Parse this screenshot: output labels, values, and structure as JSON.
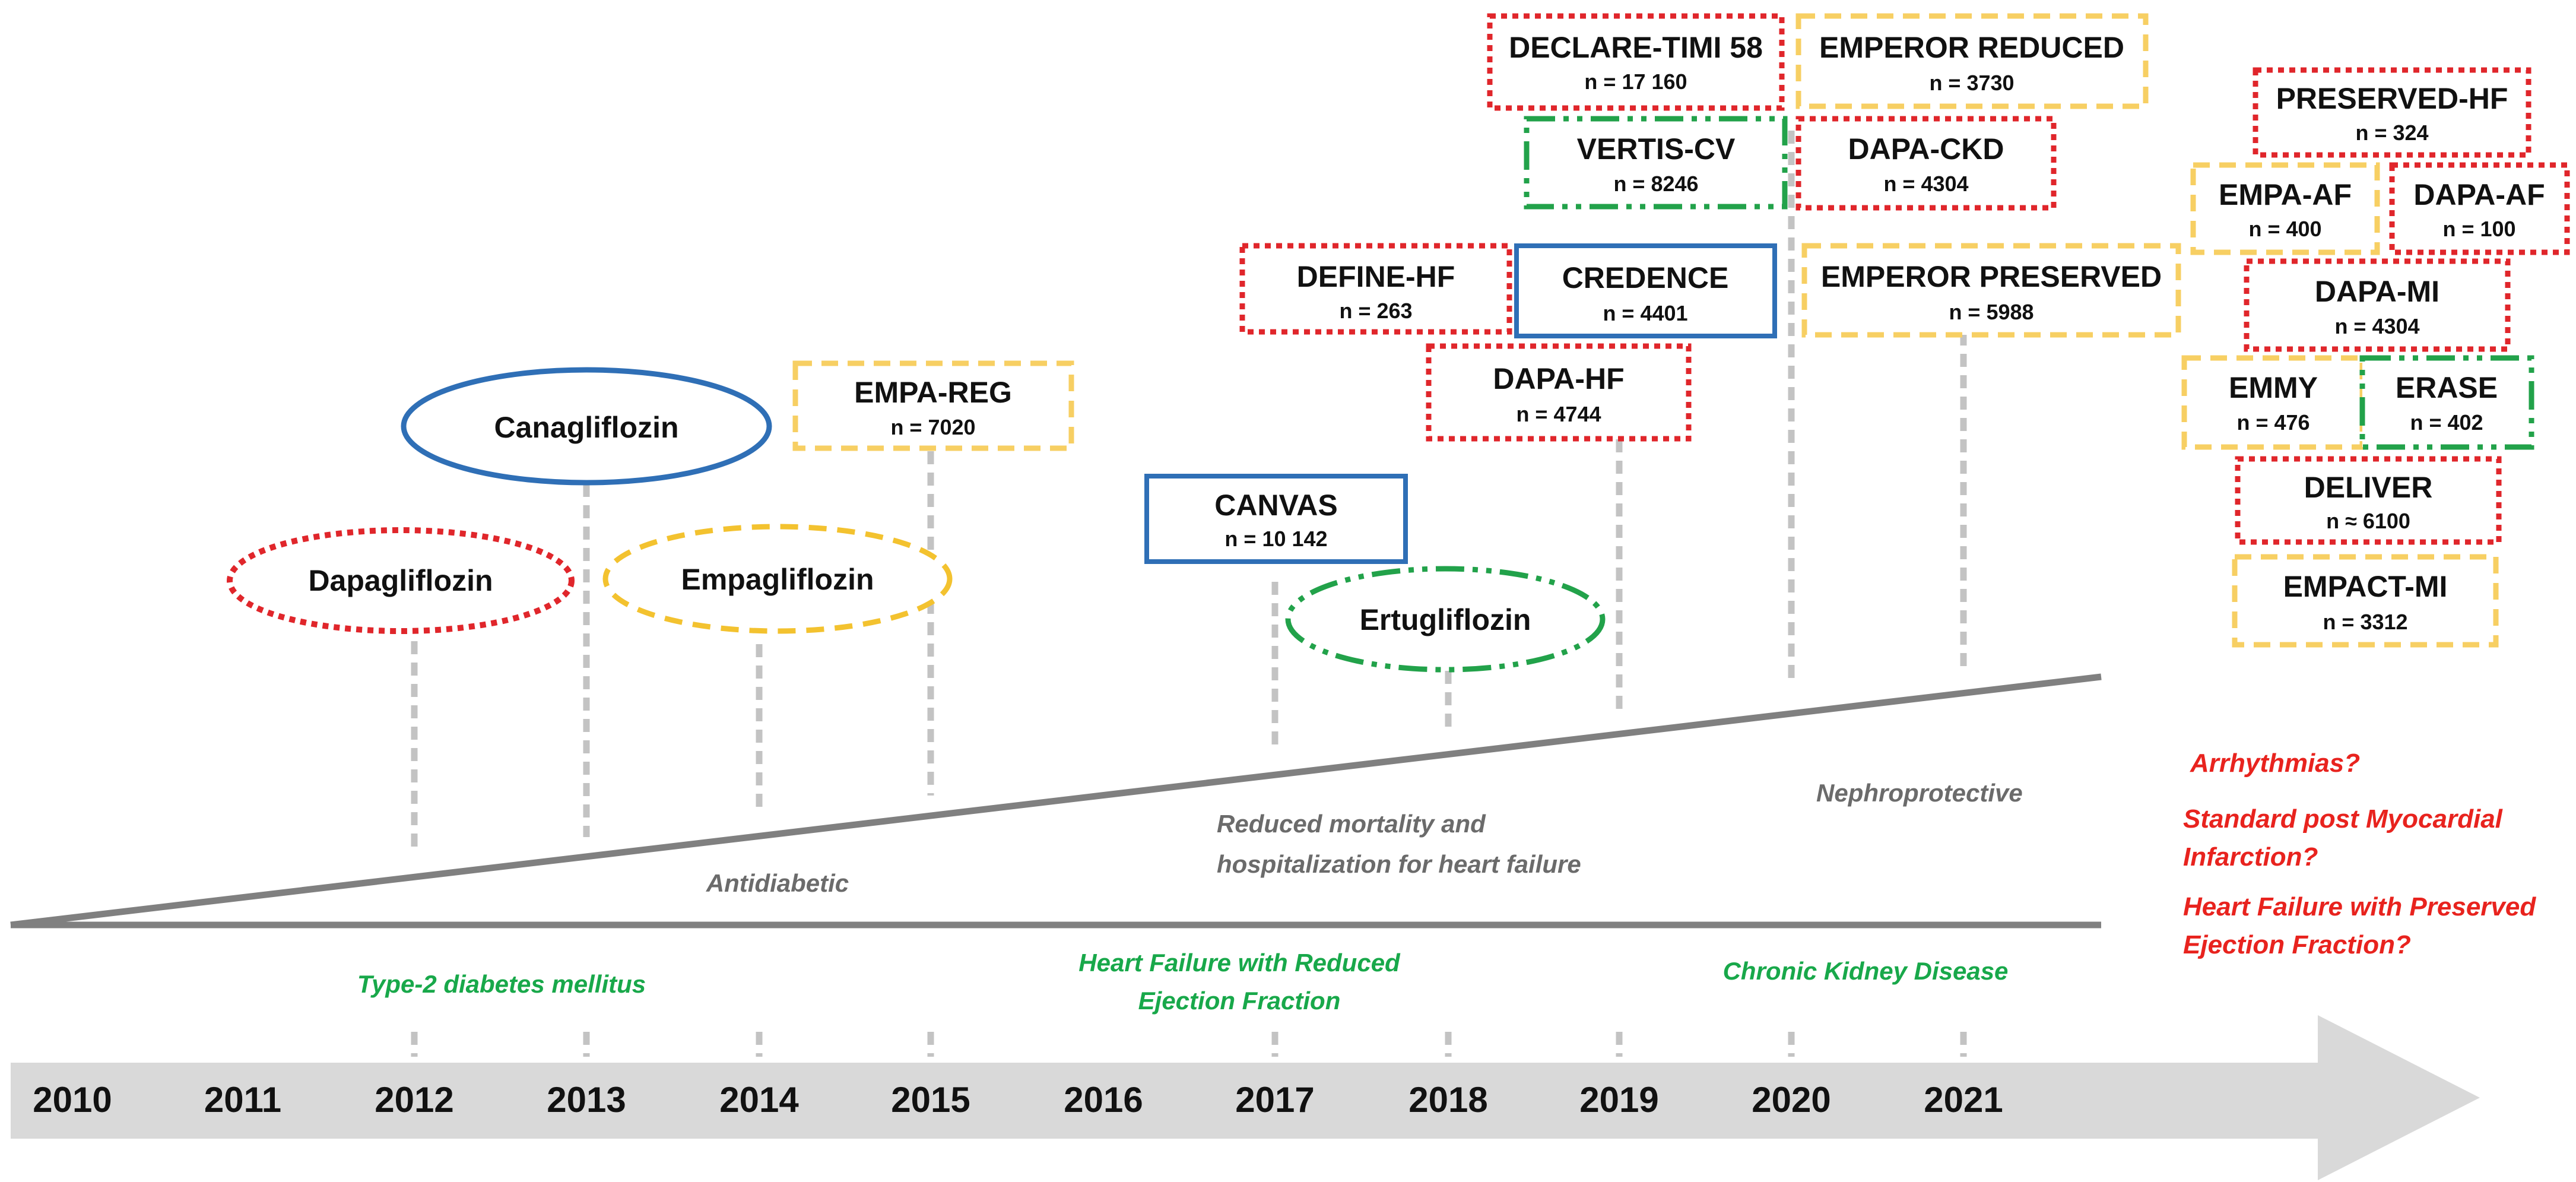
{
  "drugs": {
    "dapagliflozin": "Dapagliflozin",
    "canagliflozin": "Canagliflozin",
    "empagliflozin": "Empagliflozin",
    "ertugliflozin": "Ertugliflozin"
  },
  "trials": {
    "empa_reg": {
      "name": "EMPA-REG",
      "n": "n = 7020"
    },
    "canvas": {
      "name": "CANVAS",
      "n": "n = 10 142"
    },
    "define_hf": {
      "name": "DEFINE-HF",
      "n": "n = 263"
    },
    "credence": {
      "name": "CREDENCE",
      "n": "n = 4401"
    },
    "dapa_hf": {
      "name": "DAPA-HF",
      "n": "n = 4744"
    },
    "declare": {
      "name": "DECLARE-TIMI 58",
      "n": "n = 17 160"
    },
    "vertis": {
      "name": "VERTIS-CV",
      "n": "n = 8246"
    },
    "emperor_reduced": {
      "name": "EMPEROR REDUCED",
      "n": "n = 3730"
    },
    "dapa_ckd": {
      "name": "DAPA-CKD",
      "n": "n = 4304"
    },
    "emperor_preserved": {
      "name": "EMPEROR PRESERVED",
      "n": "n = 5988"
    },
    "preserved_hf": {
      "name": "PRESERVED-HF",
      "n": "n = 324"
    },
    "empa_af": {
      "name": "EMPA-AF",
      "n": "n = 400"
    },
    "dapa_af": {
      "name": "DAPA-AF",
      "n": "n = 100"
    },
    "dapa_mi": {
      "name": "DAPA-MI",
      "n": "n = 4304"
    },
    "emmy": {
      "name": "EMMY",
      "n": "n = 476"
    },
    "erase": {
      "name": "ERASE",
      "n": "n = 402"
    },
    "deliver": {
      "name": "DELIVER",
      "n": "n ≈ 6100"
    },
    "empact_mi": {
      "name": "EMPACT-MI",
      "n": "n = 3312"
    }
  },
  "effects": {
    "antidiabetic": "Antidiabetic",
    "mortality_1": "Reduced mortality and",
    "mortality_2": "hospitalization for heart failure",
    "nephro": "Nephroprotective"
  },
  "indications": {
    "t2dm": "Type-2 diabetes mellitus",
    "hfref_1": "Heart Failure with Reduced",
    "hfref_2": "Ejection Fraction",
    "ckd": "Chronic Kidney Disease"
  },
  "questions": {
    "q1": "Arrhythmias?",
    "q2a": "Standard post Myocardial",
    "q2b": "Infarction?",
    "q3a": "Heart Failure with Preserved",
    "q3b": "Ejection Fraction?"
  },
  "years": [
    "2010",
    "2011",
    "2012",
    "2013",
    "2014",
    "2015",
    "2016",
    "2017",
    "2018",
    "2019",
    "2020",
    "2021"
  ],
  "colors": {
    "red": "#e0262b",
    "yellow": "#f7cf63",
    "blue": "#2f6fb6",
    "green": "#22a24a",
    "timeline_arrow": "#d9d9d9",
    "effect_line": "#808080"
  }
}
